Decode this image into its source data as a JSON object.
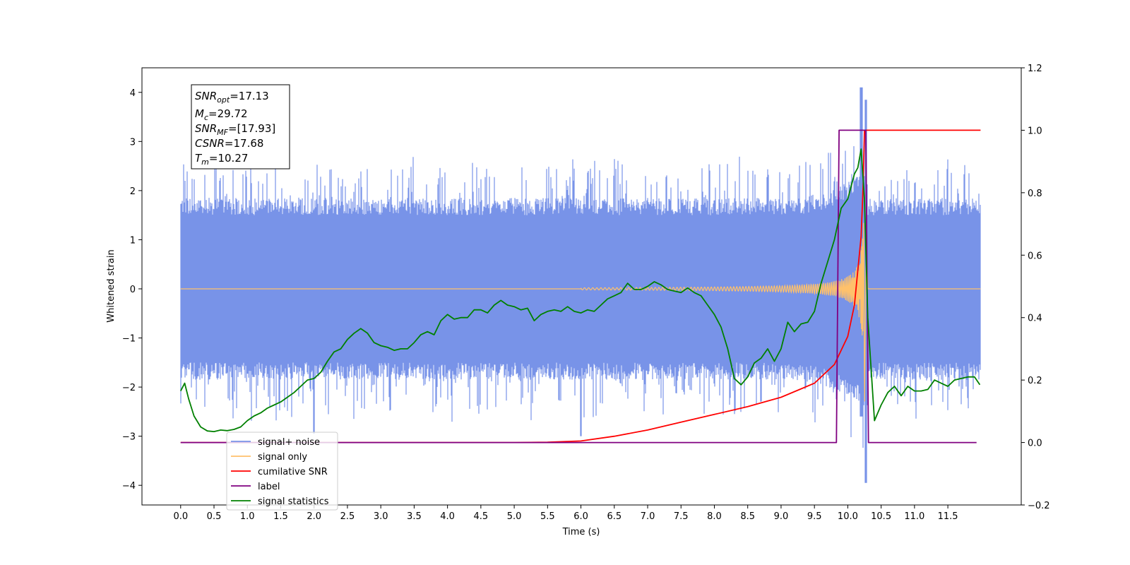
{
  "chart_data": {
    "type": "line",
    "xlabel": "Time (s)",
    "ylabel": "Whitened strain",
    "xlim": [
      -0.58,
      12.6
    ],
    "ylim": [
      -4.4,
      4.5
    ],
    "y2lim": [
      -0.2,
      1.2
    ],
    "x_ticks": [
      "0.0",
      "0.5",
      "1.0",
      "1.5",
      "2.0",
      "2.5",
      "3.0",
      "3.5",
      "4.0",
      "4.5",
      "5.0",
      "5.5",
      "6.0",
      "6.5",
      "7.0",
      "7.5",
      "8.0",
      "8.5",
      "9.0",
      "9.5",
      "10.0",
      "10.5",
      "11.0",
      "11.5"
    ],
    "y_ticks": [
      "4",
      "3",
      "2",
      "1",
      "0",
      "−1",
      "−2",
      "−3",
      "−4"
    ],
    "y2_ticks": [
      "1.2",
      "1.0",
      "0.8",
      "0.6",
      "0.4",
      "0.2",
      "0.0",
      "−0.2"
    ],
    "annotation": {
      "snr_opt": {
        "sym": "SNR",
        "sub": "opt",
        "val": "=17.13"
      },
      "mc": {
        "sym": "M",
        "sub": "c",
        "val": "=29.72"
      },
      "snr_mf": {
        "sym": "SNR",
        "sub": "MF",
        "val": "=[17.93]"
      },
      "csnr": {
        "sym": "CSNR",
        "val": "=17.68"
      },
      "tm": {
        "sym": "T",
        "sub": "m",
        "val": "=10.27"
      }
    },
    "legend_position": "lower-left",
    "legend": [
      {
        "label": "signal+ noise",
        "color": "#7893e8"
      },
      {
        "label": "signal only",
        "color": "#ffc16b"
      },
      {
        "label": "cumilative SNR",
        "color": "#ff0000"
      },
      {
        "label": "label",
        "color": "#800080"
      },
      {
        "label": "signal statistics",
        "color": "#008000"
      }
    ],
    "series": [
      {
        "name": "signal+ noise",
        "axis": "left",
        "color": "#7893e8",
        "description_envelope": {
          "x": [
            0.0,
            11.99
          ],
          "band": [
            -1.5,
            1.5
          ],
          "peak_max": 4.1,
          "peak_min": -3.95,
          "peak_x": 10.2
        }
      },
      {
        "name": "signal only",
        "axis": "left",
        "color": "#ffc16b",
        "chirp": {
          "start": 6.0,
          "merger": 10.25,
          "amp_at_merger": 1.9
        }
      },
      {
        "name": "cumilative SNR",
        "axis": "right",
        "color": "#ff0000",
        "x": [
          0.0,
          5.0,
          5.5,
          6.0,
          6.5,
          7.0,
          7.5,
          8.0,
          8.5,
          9.0,
          9.5,
          9.8,
          10.0,
          10.1,
          10.2,
          10.23,
          10.25,
          11.99
        ],
        "y": [
          0.0,
          0.0,
          0.001,
          0.005,
          0.02,
          0.04,
          0.065,
          0.09,
          0.115,
          0.145,
          0.19,
          0.25,
          0.34,
          0.44,
          0.66,
          0.82,
          1.0,
          1.0
        ]
      },
      {
        "name": "label",
        "axis": "right",
        "color": "#800080",
        "x": [
          0.0,
          9.83,
          9.87,
          10.27,
          10.31,
          11.93
        ],
        "y": [
          0.0,
          0.0,
          1.0,
          1.0,
          0.0,
          0.0
        ]
      },
      {
        "name": "signal statistics",
        "axis": "right",
        "color": "#008000",
        "x": [
          0.0,
          0.06,
          0.12,
          0.2,
          0.3,
          0.4,
          0.5,
          0.6,
          0.7,
          0.8,
          0.9,
          1.0,
          1.1,
          1.2,
          1.3,
          1.4,
          1.5,
          1.6,
          1.7,
          1.8,
          1.9,
          2.0,
          2.1,
          2.2,
          2.3,
          2.4,
          2.5,
          2.6,
          2.7,
          2.8,
          2.9,
          3.0,
          3.1,
          3.2,
          3.3,
          3.4,
          3.5,
          3.6,
          3.7,
          3.8,
          3.9,
          4.0,
          4.1,
          4.2,
          4.3,
          4.4,
          4.5,
          4.6,
          4.7,
          4.8,
          4.9,
          5.0,
          5.1,
          5.2,
          5.3,
          5.4,
          5.5,
          5.6,
          5.7,
          5.8,
          5.9,
          6.0,
          6.1,
          6.2,
          6.3,
          6.4,
          6.5,
          6.6,
          6.7,
          6.8,
          6.9,
          7.0,
          7.1,
          7.2,
          7.3,
          7.4,
          7.5,
          7.6,
          7.7,
          7.8,
          7.9,
          8.0,
          8.1,
          8.2,
          8.3,
          8.4,
          8.5,
          8.6,
          8.7,
          8.8,
          8.9,
          9.0,
          9.1,
          9.2,
          9.3,
          9.4,
          9.5,
          9.6,
          9.7,
          9.8,
          9.9,
          10.0,
          10.1,
          10.15,
          10.2,
          10.25,
          10.3,
          10.4,
          10.5,
          10.6,
          10.7,
          10.8,
          10.9,
          11.0,
          11.1,
          11.2,
          11.3,
          11.4,
          11.5,
          11.6,
          11.7,
          11.8,
          11.9,
          11.98
        ],
        "y": [
          0.165,
          0.19,
          0.14,
          0.085,
          0.05,
          0.037,
          0.035,
          0.04,
          0.038,
          0.042,
          0.05,
          0.07,
          0.085,
          0.095,
          0.11,
          0.12,
          0.13,
          0.145,
          0.16,
          0.18,
          0.2,
          0.205,
          0.225,
          0.26,
          0.29,
          0.3,
          0.33,
          0.35,
          0.365,
          0.35,
          0.32,
          0.31,
          0.305,
          0.295,
          0.3,
          0.3,
          0.32,
          0.345,
          0.355,
          0.345,
          0.39,
          0.41,
          0.395,
          0.4,
          0.4,
          0.425,
          0.425,
          0.415,
          0.44,
          0.455,
          0.44,
          0.435,
          0.425,
          0.43,
          0.39,
          0.41,
          0.42,
          0.425,
          0.42,
          0.435,
          0.42,
          0.415,
          0.425,
          0.42,
          0.44,
          0.46,
          0.47,
          0.48,
          0.51,
          0.49,
          0.49,
          0.5,
          0.515,
          0.505,
          0.49,
          0.485,
          0.48,
          0.495,
          0.48,
          0.47,
          0.44,
          0.41,
          0.37,
          0.3,
          0.205,
          0.185,
          0.21,
          0.255,
          0.27,
          0.3,
          0.26,
          0.3,
          0.385,
          0.355,
          0.38,
          0.385,
          0.42,
          0.51,
          0.58,
          0.65,
          0.75,
          0.78,
          0.86,
          0.88,
          0.94,
          0.78,
          0.4,
          0.07,
          0.12,
          0.16,
          0.18,
          0.15,
          0.18,
          0.165,
          0.165,
          0.17,
          0.2,
          0.19,
          0.18,
          0.2,
          0.205,
          0.21,
          0.21,
          0.185
        ]
      }
    ]
  }
}
